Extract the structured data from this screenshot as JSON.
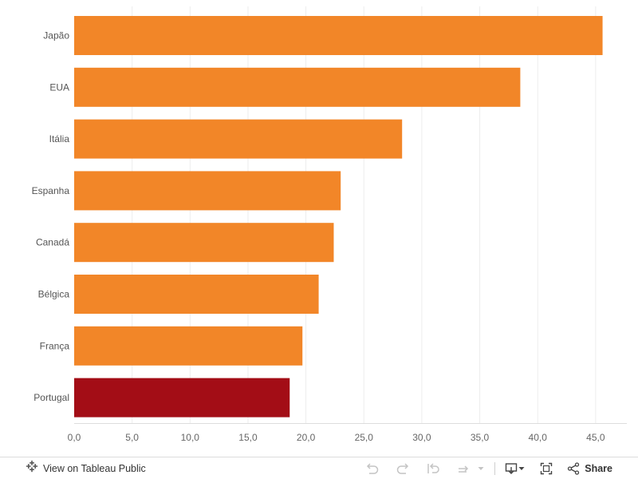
{
  "chart_data": {
    "type": "bar",
    "orientation": "horizontal",
    "categories": [
      "Japão",
      "EUA",
      "Itália",
      "Espanha",
      "Canadá",
      "Bélgica",
      "França",
      "Portugal"
    ],
    "values": [
      45.6,
      38.5,
      28.3,
      23.0,
      22.4,
      21.1,
      19.7,
      18.6
    ],
    "bar_colors": [
      "#f28628",
      "#f28628",
      "#f28628",
      "#f28628",
      "#f28628",
      "#f28628",
      "#f28628",
      "#a30d16"
    ],
    "x_ticks": [
      "0,0",
      "5,0",
      "10,0",
      "15,0",
      "20,0",
      "25,0",
      "30,0",
      "35,0",
      "40,0",
      "45,0"
    ],
    "xlim": [
      0,
      47
    ],
    "grid": true
  },
  "toolbar": {
    "view_label": "View on Tableau Public",
    "share_label": "Share"
  },
  "colors": {
    "bar": "#f28628",
    "highlight_bar": "#a30d16",
    "toolbar_text": "#333333"
  }
}
